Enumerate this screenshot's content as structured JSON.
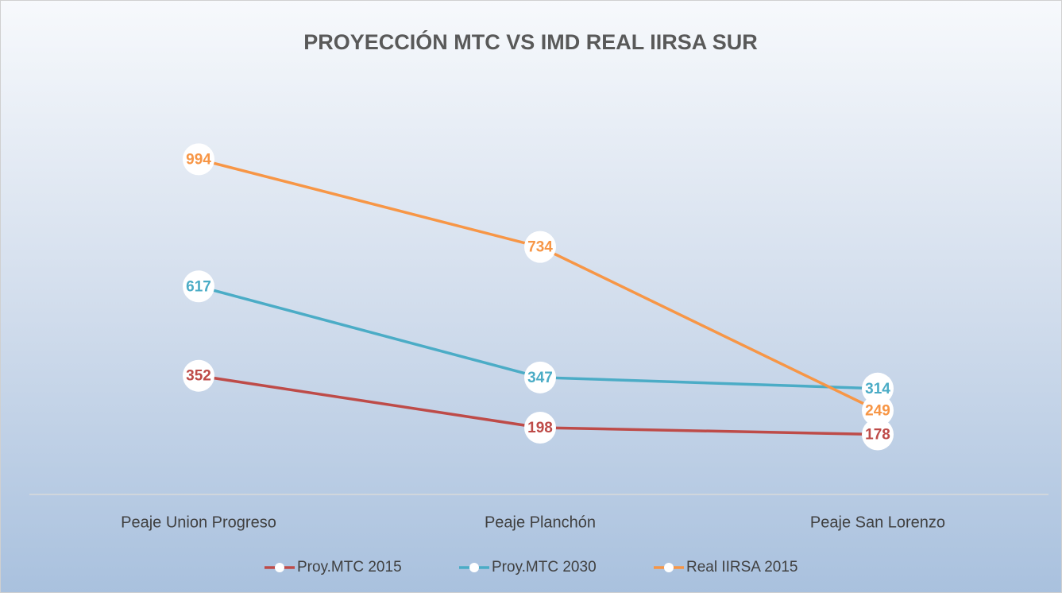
{
  "chart_data": {
    "type": "line",
    "title": "PROYECCIÓN MTC VS IMD REAL IIRSA SUR",
    "categories": [
      "Peaje Union Progreso",
      "Peaje Planchón",
      "Peaje San Lorenzo"
    ],
    "series": [
      {
        "name": "Proy.MTC 2015",
        "color": "#be4b48",
        "values": [
          352,
          198,
          178
        ]
      },
      {
        "name": "Proy.MTC 2030",
        "color": "#4bacc6",
        "values": [
          617,
          347,
          314
        ]
      },
      {
        "name": "Real IIRSA 2015",
        "color": "#f79646",
        "values": [
          994,
          734,
          249
        ]
      }
    ],
    "ylim": [
      0,
      1200
    ],
    "legend": "bottom"
  }
}
